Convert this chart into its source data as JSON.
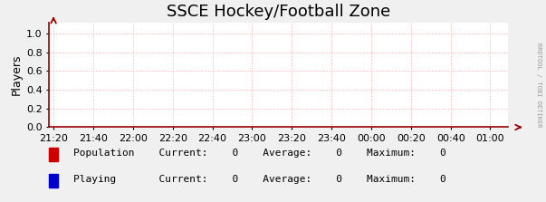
{
  "title": "SSCE Hockey/Football Zone",
  "ylabel": "Players",
  "background_color": "#f0f0f0",
  "plot_bg_color": "#ffffff",
  "grid_color": "#ffaaaa",
  "axis_color": "#990000",
  "yticks": [
    0.0,
    0.2,
    0.4,
    0.6,
    0.8,
    1.0
  ],
  "ylim": [
    0.0,
    1.12
  ],
  "xtick_labels": [
    "21:20",
    "21:40",
    "22:00",
    "22:20",
    "22:40",
    "23:00",
    "23:20",
    "23:40",
    "00:00",
    "00:20",
    "00:40",
    "01:00"
  ],
  "legend": [
    {
      "label": "Population",
      "color": "#cc0000"
    },
    {
      "label": "Playing",
      "color": "#0000cc"
    }
  ],
  "watermark": "RRDTOOL / TOBI OETIKER",
  "title_fontsize": 13,
  "tick_fontsize": 8,
  "legend_fontsize": 8,
  "ylabel_fontsize": 9
}
